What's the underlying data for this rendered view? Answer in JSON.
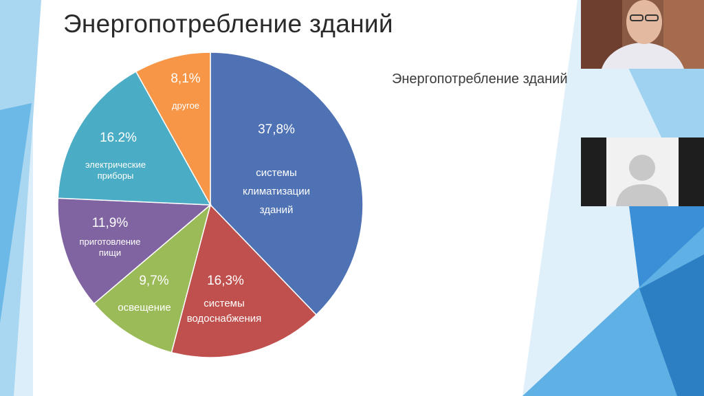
{
  "slide": {
    "title": "Энергопотребление зданий",
    "subtitle": "Энергопотребление зданий"
  },
  "chart_data": {
    "type": "pie",
    "title": "Энергопотребление зданий",
    "unit": "%",
    "slices": [
      {
        "pct_label": "37,8%",
        "value": 37.8,
        "label_lines": [
          "системы",
          "климатизации",
          "зданий"
        ],
        "color": "#4f72b5"
      },
      {
        "pct_label": "16,3%",
        "value": 16.3,
        "label_lines": [
          "системы",
          "водоснабжения"
        ],
        "color": "#c0504d"
      },
      {
        "pct_label": "9,7%",
        "value": 9.7,
        "label_lines": [
          "освещение"
        ],
        "color": "#9bbb59"
      },
      {
        "pct_label": "11,9%",
        "value": 11.9,
        "label_lines": [
          "приготовление",
          "пищи"
        ],
        "color": "#8064a2"
      },
      {
        "pct_label": "16.2%",
        "value": 16.2,
        "label_lines": [
          "электрические",
          "приборы"
        ],
        "color": "#4bacc6"
      },
      {
        "pct_label": "8,1%",
        "value": 8.1,
        "label_lines": [
          "другое"
        ],
        "color": "#f79646"
      }
    ]
  },
  "participants": [
    {
      "name": "",
      "video": "on"
    },
    {
      "name": "",
      "video": "off"
    }
  ],
  "colors": {
    "accent_blue": "#3a8fd6",
    "light_blue": "#8cc6ea"
  }
}
